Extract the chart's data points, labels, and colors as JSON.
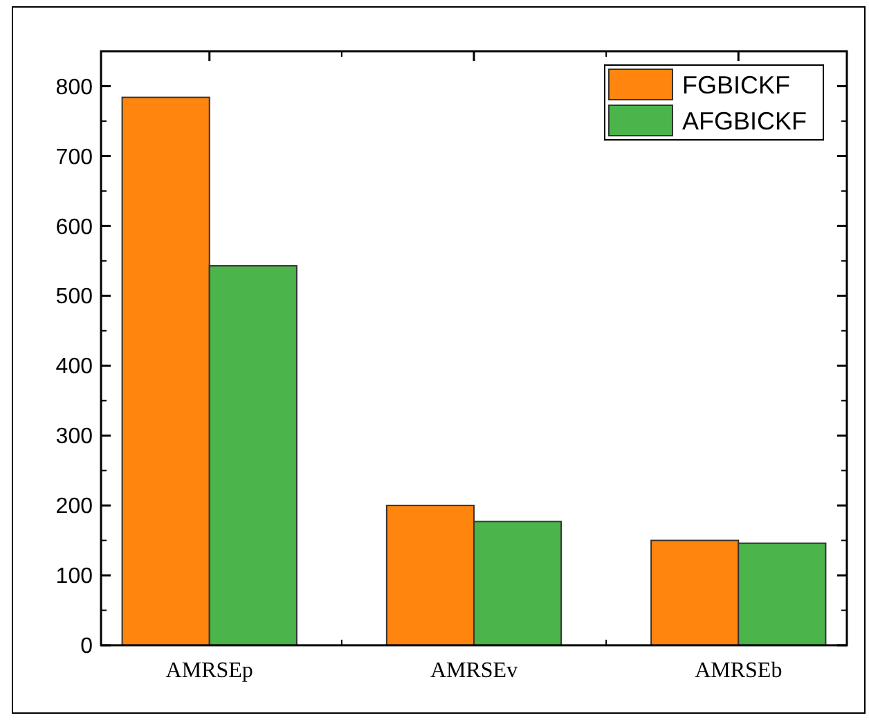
{
  "chart_data": {
    "type": "bar",
    "categories": [
      "AMRSEp",
      "AMRSEv",
      "AMRSEb"
    ],
    "series": [
      {
        "name": "FGBICKF",
        "color": "#ff850f",
        "values": [
          784,
          200,
          150
        ]
      },
      {
        "name": "AFGBICKF",
        "color": "#4bb54b",
        "values": [
          543,
          177,
          146
        ]
      }
    ],
    "ylim": [
      0,
      850
    ],
    "yticks": [
      0,
      100,
      200,
      300,
      400,
      500,
      600,
      700,
      800
    ],
    "grid": false,
    "legend": "top right"
  }
}
